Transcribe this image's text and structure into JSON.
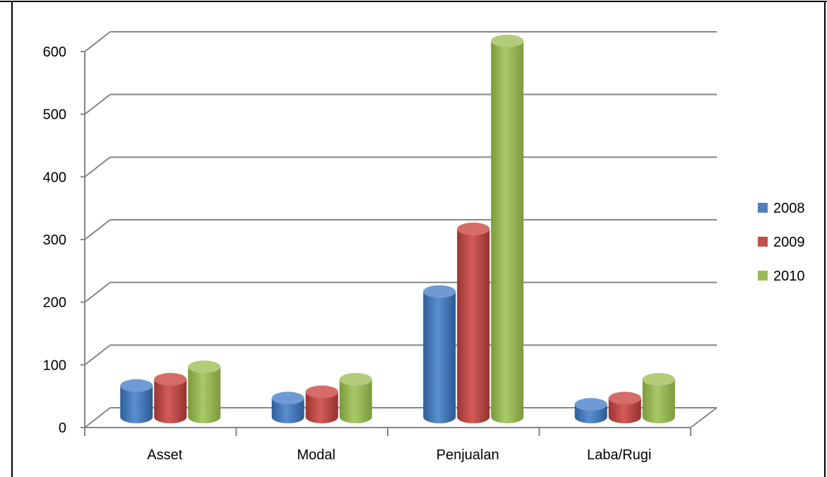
{
  "chart_data": {
    "type": "bar",
    "title": "",
    "xlabel": "",
    "ylabel": "",
    "categories": [
      "Asset",
      "Modal",
      "Penjualan",
      "Laba/Rugi"
    ],
    "ylim": [
      0,
      600
    ],
    "yticks": [
      "0",
      "100",
      "200",
      "300",
      "400",
      "500",
      "600"
    ],
    "grid": true,
    "legend_position": "right",
    "series": [
      {
        "name": "2008",
        "color": "#4f81bd",
        "values": [
          50,
          30,
          200,
          20
        ]
      },
      {
        "name": "2009",
        "color": "#c0504d",
        "values": [
          60,
          40,
          300,
          30
        ]
      },
      {
        "name": "2010",
        "color": "#9bbb59",
        "values": [
          80,
          60,
          600,
          60
        ]
      }
    ]
  }
}
